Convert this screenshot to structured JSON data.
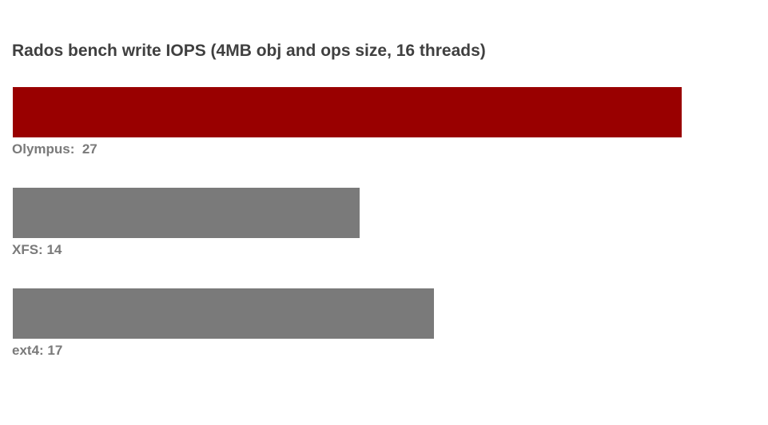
{
  "chart_data": {
    "type": "bar",
    "orientation": "horizontal",
    "title": "Rados bench write IOPS (4MB obj and ops size, 16 threads)",
    "xlabel": "",
    "ylabel": "",
    "categories": [
      "Olympus",
      "XFS",
      "ext4"
    ],
    "values": [
      27,
      14,
      17
    ],
    "labels": [
      "Olympus:  27",
      "XFS: 14",
      "ext4: 17"
    ],
    "xlim": [
      0,
      27
    ],
    "grid": false,
    "legend": "none",
    "colors": [
      "#990000",
      "#7a7a7a",
      "#7a7a7a"
    ],
    "label_color": "#7a7a7a",
    "title_color": "#404040"
  }
}
